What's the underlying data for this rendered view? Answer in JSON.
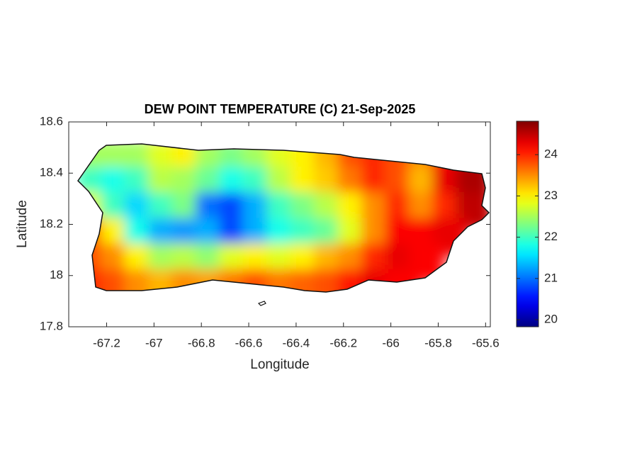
{
  "chart_data": {
    "type": "heatmap",
    "title": "DEW POINT TEMPERATURE (C) 21-Sep-2025",
    "x_label": "Longitude",
    "y_label": "Latitude",
    "xlim": [
      -67.36,
      -65.58
    ],
    "ylim": [
      17.8,
      18.6
    ],
    "xticks": [
      -67.2,
      -67,
      -66.8,
      -66.6,
      -66.4,
      -66.2,
      -66,
      -65.8,
      -65.6
    ],
    "yticks": [
      17.8,
      18,
      18.2,
      18.4,
      18.6
    ],
    "x": [
      -67.25,
      -67.15,
      -67.05,
      -66.95,
      -66.85,
      -66.75,
      -66.65,
      -66.55,
      -66.45,
      -66.35,
      -66.25,
      -66.15,
      -66.05,
      -65.95,
      -65.85,
      -65.75,
      -65.65
    ],
    "y": [
      18.45,
      18.35,
      18.25,
      18.15,
      18.05,
      17.95
    ],
    "values": [
      [
        22.5,
        22.5,
        22.5,
        22.8,
        23.0,
        22.5,
        22.3,
        22.5,
        22.8,
        23.0,
        23.3,
        23.8,
        24.0,
        23.8,
        23.5,
        24.2,
        24.5
      ],
      [
        22.0,
        21.8,
        22.0,
        22.6,
        22.5,
        22.2,
        21.8,
        22.0,
        22.6,
        23.0,
        23.2,
        23.6,
        24.0,
        23.8,
        23.3,
        24.3,
        24.6
      ],
      [
        22.8,
        22.0,
        21.5,
        22.0,
        22.3,
        21.0,
        20.8,
        21.3,
        22.0,
        22.3,
        22.6,
        23.0,
        23.5,
        24.0,
        23.5,
        24.0,
        24.5
      ],
      [
        23.8,
        23.0,
        21.8,
        21.3,
        21.2,
        21.3,
        20.8,
        21.3,
        21.8,
        22.0,
        22.2,
        22.8,
        23.5,
        24.2,
        24.2,
        24.3,
        null
      ],
      [
        23.8,
        23.5,
        23.0,
        22.5,
        22.6,
        22.4,
        22.8,
        23.0,
        22.8,
        23.0,
        23.3,
        23.5,
        24.0,
        24.3,
        24.2,
        null,
        null
      ],
      [
        24.0,
        23.8,
        23.5,
        23.3,
        23.5,
        23.4,
        23.6,
        23.8,
        23.6,
        23.7,
        23.8,
        24.1,
        24.3,
        24.2,
        null,
        null,
        null
      ]
    ],
    "colormap": "jet",
    "clim": [
      19.83,
      24.81
    ],
    "colorbar_ticks": [
      20,
      21,
      22,
      23,
      24
    ]
  }
}
